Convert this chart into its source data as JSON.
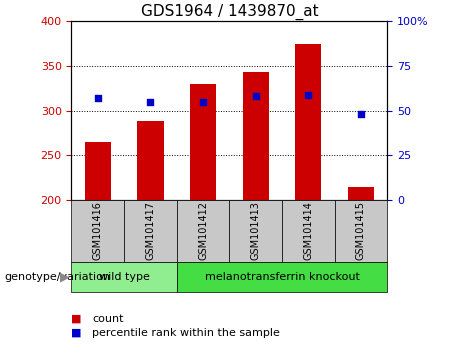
{
  "title": "GDS1964 / 1439870_at",
  "samples": [
    "GSM101416",
    "GSM101417",
    "GSM101412",
    "GSM101413",
    "GSM101414",
    "GSM101415"
  ],
  "counts": [
    265,
    288,
    330,
    343,
    375,
    215
  ],
  "percentiles": [
    57,
    55,
    55,
    58,
    59,
    48
  ],
  "ylim_left": [
    200,
    400
  ],
  "ylim_right": [
    0,
    100
  ],
  "yticks_left": [
    200,
    250,
    300,
    350,
    400
  ],
  "yticks_right": [
    0,
    25,
    50,
    75,
    100
  ],
  "bar_color": "#cc0000",
  "dot_color": "#0000cc",
  "bar_bottom": 200,
  "group_label": "genotype/variation",
  "legend_count": "count",
  "legend_percentile": "percentile rank within the sample",
  "sample_bg_color": "#c8c8c8",
  "wild_type_color": "#90ee90",
  "knockout_color": "#44dd44",
  "wild_type_label": "wild type",
  "knockout_label": "melanotransferrin knockout",
  "wild_type_samples": [
    0,
    1
  ],
  "knockout_samples": [
    2,
    3,
    4,
    5
  ]
}
